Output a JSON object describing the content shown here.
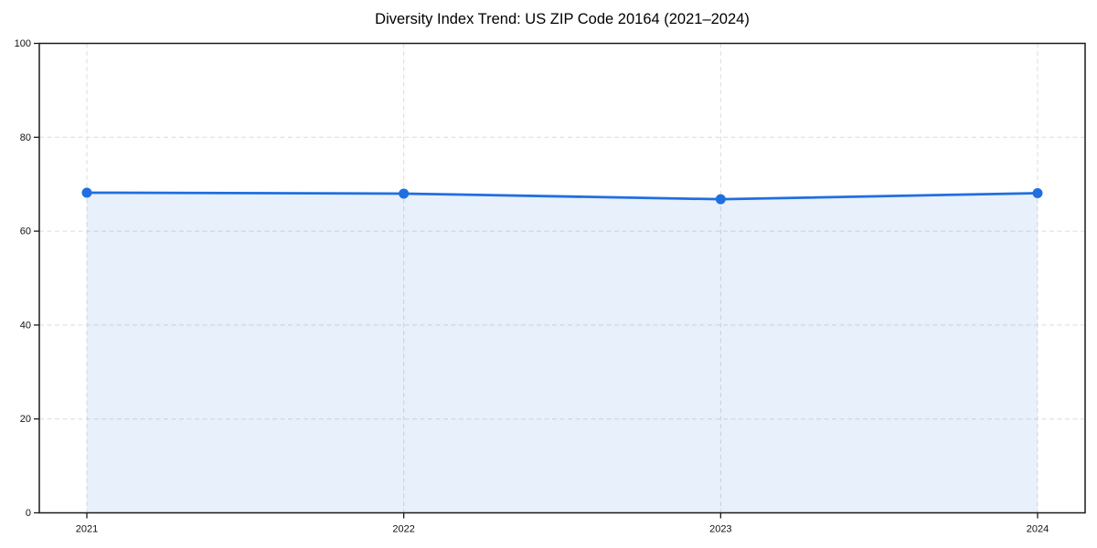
{
  "chart_data": {
    "type": "area",
    "title": "Diversity Index Trend: US ZIP Code 20164 (2021–2024)",
    "x": [
      2021,
      2022,
      2023,
      2024
    ],
    "x_tick_labels": [
      "2021",
      "2022",
      "2023",
      "2024"
    ],
    "series": [
      {
        "name": "Diversity Index",
        "values": [
          68.2,
          68.0,
          66.8,
          68.1
        ]
      }
    ],
    "xlabel": "",
    "ylabel": "",
    "ylim": [
      0,
      100
    ],
    "yticks": [
      0,
      20,
      40,
      60,
      80,
      100
    ],
    "grid": true,
    "grid_style": "dashed",
    "legend": false,
    "colors": {
      "line": "#1f6fe0",
      "marker": "#1f6fe0",
      "fill": "rgba(31,111,224,0.10)",
      "grid": "#dcdcdc",
      "axis": "#1a1a1a",
      "tick_text": "#111111",
      "background": "#ffffff"
    }
  }
}
